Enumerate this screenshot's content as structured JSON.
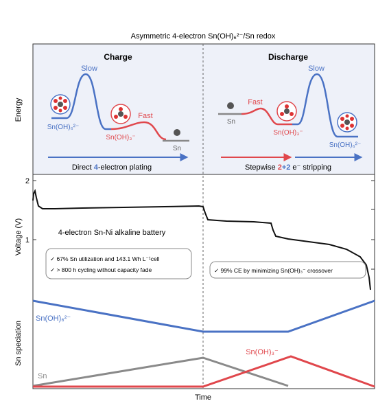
{
  "title": "Asymmetric 4-electron Sn(OH)₆²⁻/Sn redox",
  "axes": {
    "energy": "Energy",
    "voltage": "Voltage (V)",
    "speciation": "Sn speciation",
    "time": "Time",
    "volt_ticks": [
      "2",
      "1"
    ]
  },
  "charge": {
    "heading": "Charge",
    "slow": "Slow",
    "fast": "Fast",
    "species_a": "Sn(OH)₆²⁻",
    "species_b": "Sn(OH)₃⁻",
    "species_c": "Sn",
    "arrow_pre": "Direct ",
    "arrow_num": "4",
    "arrow_post": "-electron plating"
  },
  "discharge": {
    "heading": "Discharge",
    "slow": "Slow",
    "fast": "Fast",
    "species_a": "Sn",
    "species_b": "Sn(OH)₃⁻",
    "species_c": "Sn(OH)₆²⁻",
    "arrow_pre": "Stepwise ",
    "arrow_n1": "2",
    "arrow_plus": "+",
    "arrow_n2": "2",
    "arrow_post": " e⁻ stripping"
  },
  "battery": {
    "name": "4-electron Sn-Ni alkaline battery",
    "note1": "✓ 67% Sn utilization and 143.1 Wh L⁻¹cell",
    "note2": "✓ > 800 h cycling without capacity fade",
    "note3": "✓ 99% CE by minimizing Sn(OH)₃⁻ crossover"
  },
  "speciation_labels": {
    "hex": "Sn(OH)₆²⁻",
    "tri": "Sn(OH)₃⁻",
    "sn": "Sn"
  },
  "colors": {
    "blue": "#4a72c4",
    "red": "#e0474c",
    "gray": "#8a8a8a",
    "panel": "#eef1f9",
    "frame": "#333333"
  }
}
